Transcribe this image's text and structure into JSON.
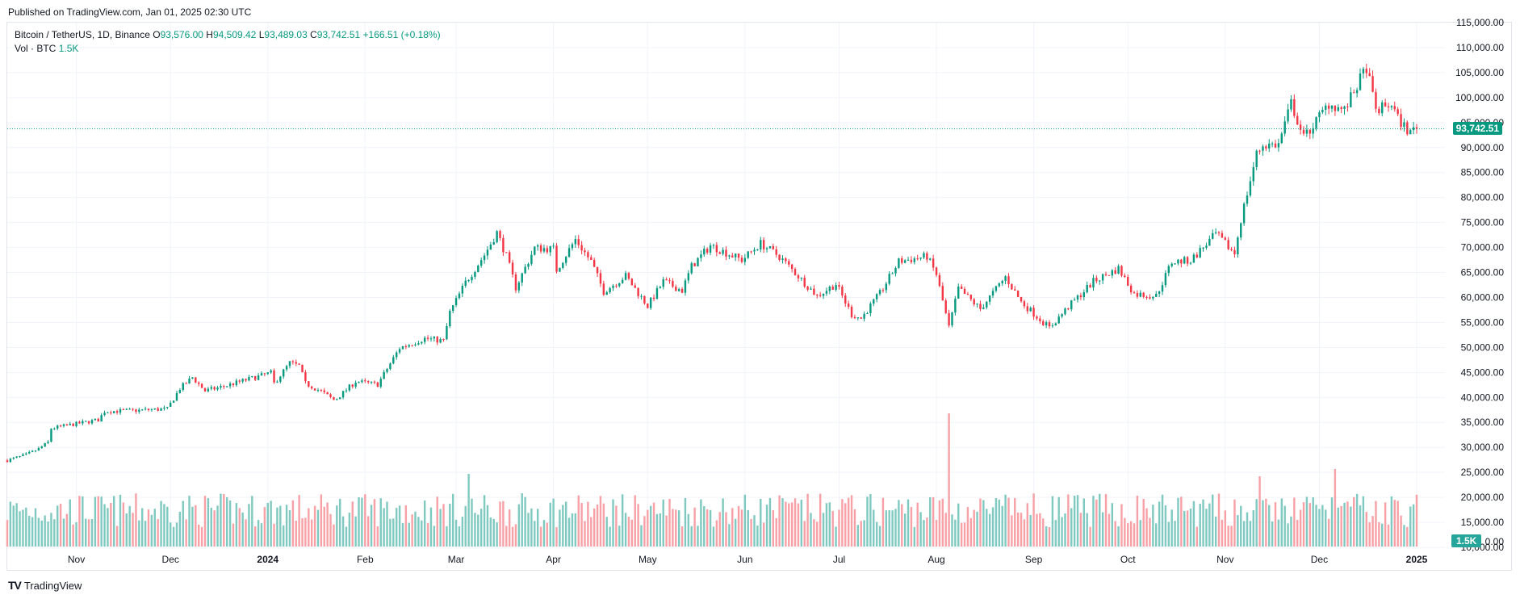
{
  "published": "Published on TradingView.com, Jan 01, 2025 02:30 UTC",
  "brand": {
    "logo": "TV",
    "name": "TradingView"
  },
  "legend": {
    "symbol": "Bitcoin / TetherUS, 1D, Binance",
    "o_label": "O",
    "o_value": "93,576.00",
    "h_label": "H",
    "h_value": "94,509.42",
    "l_label": "L",
    "l_value": "93,489.03",
    "c_label": "C",
    "c_value": "93,742.51",
    "change": "+166.51 (+0.18%)",
    "vol_label": "Vol · BTC",
    "vol_value": "1.5K"
  },
  "last_price_label": "93,742.51",
  "last_volume_label": "1.5K",
  "colors": {
    "up": "#089981",
    "down": "#f23645",
    "vol_up": "#7fc9c1",
    "vol_down": "#f7a1a7",
    "grid": "#f0f3fa",
    "price_line": "#089981"
  },
  "chart_data": {
    "type": "candlestick",
    "y_axis": {
      "min": 10000,
      "max": 115000,
      "ticks": [
        10000,
        15000,
        20000,
        25000,
        30000,
        35000,
        40000,
        45000,
        50000,
        55000,
        60000,
        65000,
        70000,
        75000,
        80000,
        85000,
        90000,
        95000,
        100000,
        105000,
        110000,
        115000
      ],
      "tick_labels": [
        "10,000.00",
        "15,000.00",
        "20,000.00",
        "25,000.00",
        "30,000.00",
        "35,000.00",
        "40,000.00",
        "45,000.00",
        "50,000.00",
        "55,000.00",
        "60,000.00",
        "65,000.00",
        "70,000.00",
        "75,000.00",
        "80,000.00",
        "85,000.00",
        "90,000.00",
        "95,000.00",
        "100,000.00",
        "105,000.00",
        "110,000.00",
        "115,000.00"
      ]
    },
    "x_axis": {
      "start": "2023-10-10",
      "end": "2025-01-01",
      "ticks": [
        "2023-11-01",
        "2023-12-01",
        "2024-01-01",
        "2024-02-01",
        "2024-03-01",
        "2024-04-01",
        "2024-05-01",
        "2024-06-01",
        "2024-07-01",
        "2024-08-01",
        "2024-09-01",
        "2024-10-01",
        "2024-11-01",
        "2024-12-01",
        "2025-01-01"
      ],
      "tick_labels": [
        "Nov",
        "Dec",
        "2024",
        "Feb",
        "Mar",
        "Apr",
        "May",
        "Jun",
        "Jul",
        "Aug",
        "Sep",
        "Oct",
        "Nov",
        "Dec",
        "2025"
      ],
      "bold_ticks": [
        "2024",
        "2025"
      ]
    },
    "last_price": 93742.51,
    "path": [
      [
        "2023-10-10",
        27400
      ],
      [
        "2023-10-16",
        28500
      ],
      [
        "2023-10-20",
        29700
      ],
      [
        "2023-10-23",
        31000
      ],
      [
        "2023-10-24",
        33800
      ],
      [
        "2023-10-31",
        34600
      ],
      [
        "2023-11-08",
        35500
      ],
      [
        "2023-11-10",
        37200
      ],
      [
        "2023-11-20",
        37400
      ],
      [
        "2023-11-30",
        37700
      ],
      [
        "2023-12-04",
        41800
      ],
      [
        "2023-12-08",
        44000
      ],
      [
        "2023-12-12",
        41300
      ],
      [
        "2023-12-18",
        42200
      ],
      [
        "2023-12-25",
        43500
      ],
      [
        "2024-01-02",
        44900
      ],
      [
        "2024-01-03",
        42800
      ],
      [
        "2024-01-08",
        46900
      ],
      [
        "2024-01-11",
        46300
      ],
      [
        "2024-01-13",
        42800
      ],
      [
        "2024-01-18",
        41200
      ],
      [
        "2024-01-22",
        39500
      ],
      [
        "2024-01-23",
        39800
      ],
      [
        "2024-01-29",
        43200
      ],
      [
        "2024-02-05",
        42600
      ],
      [
        "2024-02-12",
        49900
      ],
      [
        "2024-02-20",
        51800
      ],
      [
        "2024-02-26",
        51300
      ],
      [
        "2024-02-28",
        57000
      ],
      [
        "2024-03-04",
        63000
      ],
      [
        "2024-03-10",
        68500
      ],
      [
        "2024-03-14",
        73000
      ],
      [
        "2024-03-17",
        68300
      ],
      [
        "2024-03-20",
        62000
      ],
      [
        "2024-03-26",
        69900
      ],
      [
        "2024-04-01",
        69700
      ],
      [
        "2024-04-02",
        65500
      ],
      [
        "2024-04-08",
        71600
      ],
      [
        "2024-04-13",
        67200
      ],
      [
        "2024-04-17",
        61200
      ],
      [
        "2024-04-24",
        64300
      ],
      [
        "2024-05-01",
        58300
      ],
      [
        "2024-05-06",
        63200
      ],
      [
        "2024-05-12",
        61400
      ],
      [
        "2024-05-15",
        66200
      ],
      [
        "2024-05-21",
        70400
      ],
      [
        "2024-05-31",
        67500
      ],
      [
        "2024-06-06",
        70800
      ],
      [
        "2024-06-12",
        68200
      ],
      [
        "2024-06-24",
        60300
      ],
      [
        "2024-06-30",
        62700
      ],
      [
        "2024-07-05",
        56600
      ],
      [
        "2024-07-08",
        55800
      ],
      [
        "2024-07-14",
        60800
      ],
      [
        "2024-07-20",
        67200
      ],
      [
        "2024-07-29",
        68200
      ],
      [
        "2024-08-01",
        64600
      ],
      [
        "2024-08-05",
        54000
      ],
      [
        "2024-08-08",
        61800
      ],
      [
        "2024-08-15",
        57700
      ],
      [
        "2024-08-23",
        64100
      ],
      [
        "2024-08-28",
        59100
      ],
      [
        "2024-09-06",
        53900
      ],
      [
        "2024-09-12",
        58100
      ],
      [
        "2024-09-20",
        63200
      ],
      [
        "2024-09-28",
        65800
      ],
      [
        "2024-10-03",
        60700
      ],
      [
        "2024-10-10",
        60300
      ],
      [
        "2024-10-15",
        67100
      ],
      [
        "2024-10-21",
        67400
      ],
      [
        "2024-10-29",
        72700
      ],
      [
        "2024-11-04",
        68800
      ],
      [
        "2024-11-06",
        75600
      ],
      [
        "2024-11-11",
        88700
      ],
      [
        "2024-11-13",
        90500
      ],
      [
        "2024-11-18",
        90600
      ],
      [
        "2024-11-22",
        98900
      ],
      [
        "2024-11-26",
        91900
      ],
      [
        "2024-12-04",
        98800
      ],
      [
        "2024-12-09",
        97400
      ],
      [
        "2024-12-16",
        106100
      ],
      [
        "2024-12-19",
        97400
      ],
      [
        "2024-12-24",
        98700
      ],
      [
        "2024-12-26",
        95800
      ],
      [
        "2024-12-30",
        92800
      ],
      [
        "2024-12-31",
        93742
      ]
    ],
    "volume_max": 60000,
    "volume_ticks": [
      0
    ],
    "volume_tick_labels": [
      "0.00"
    ],
    "volume_spikes": [
      [
        "2024-03-05",
        30000
      ],
      [
        "2024-08-05",
        55000
      ],
      [
        "2024-12-06",
        32000
      ],
      [
        "2024-11-12",
        29000
      ]
    ]
  }
}
